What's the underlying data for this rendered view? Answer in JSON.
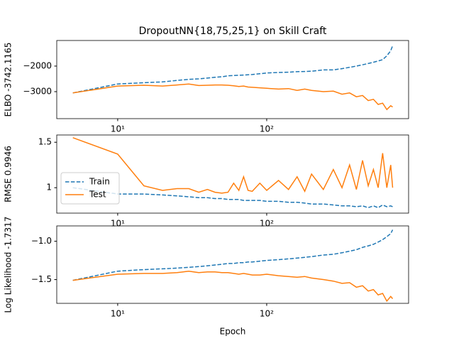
{
  "chart_data": [
    {
      "type": "line",
      "title": "DropoutNN{18,75,25,1} on Skill Craft",
      "ylabel": "ELBO -3742.1165",
      "xscale": "log",
      "xlim": [
        3.9,
        896
      ],
      "xticks": [
        {
          "value": 10,
          "label": "10¹"
        },
        {
          "value": 100,
          "label": "10²"
        }
      ],
      "ylim": [
        -4056,
        -1000
      ],
      "yticks": [
        {
          "value": -3000,
          "label": "−3000"
        },
        {
          "value": -2000,
          "label": "−2000"
        }
      ],
      "x": [
        5,
        10,
        15,
        20,
        25,
        30,
        35,
        40,
        45,
        50,
        55,
        60,
        65,
        70,
        75,
        80,
        90,
        100,
        120,
        140,
        160,
        180,
        200,
        240,
        280,
        320,
        360,
        400,
        440,
        480,
        520,
        560,
        600,
        640,
        680,
        700
      ],
      "series": [
        {
          "name": "Train",
          "color": "#1f77b4",
          "linestyle": "dashed",
          "values": [
            -3050,
            -2700,
            -2650,
            -2620,
            -2560,
            -2520,
            -2500,
            -2470,
            -2440,
            -2420,
            -2380,
            -2370,
            -2360,
            -2350,
            -2340,
            -2330,
            -2300,
            -2270,
            -2250,
            -2240,
            -2220,
            -2210,
            -2200,
            -2150,
            -2150,
            -2100,
            -2050,
            -2000,
            -1950,
            -1900,
            -1850,
            -1800,
            -1750,
            -1600,
            -1400,
            -1200
          ]
        },
        {
          "name": "Test",
          "color": "#ff7f0e",
          "linestyle": "solid",
          "values": [
            -3050,
            -2780,
            -2750,
            -2780,
            -2740,
            -2700,
            -2760,
            -2750,
            -2740,
            -2740,
            -2750,
            -2770,
            -2800,
            -2780,
            -2820,
            -2830,
            -2850,
            -2870,
            -2900,
            -2880,
            -2950,
            -2900,
            -2950,
            -3000,
            -2980,
            -3100,
            -3050,
            -3200,
            -3150,
            -3350,
            -3300,
            -3500,
            -3450,
            -3700,
            -3550,
            -3600
          ]
        }
      ]
    },
    {
      "type": "line",
      "ylabel": "RMSE 0.9946",
      "xscale": "log",
      "legend": "center left",
      "xlim": [
        3.9,
        896
      ],
      "xticks": [
        {
          "value": 10,
          "label": "10¹"
        },
        {
          "value": 100,
          "label": "10²"
        }
      ],
      "ylim": [
        0.72,
        1.58
      ],
      "yticks": [
        1.0,
        1.5
      ],
      "x": [
        5,
        10,
        15,
        20,
        25,
        30,
        35,
        40,
        45,
        50,
        55,
        60,
        65,
        70,
        75,
        80,
        90,
        100,
        120,
        140,
        160,
        180,
        200,
        240,
        280,
        320,
        360,
        400,
        440,
        480,
        520,
        560,
        600,
        640,
        680,
        700
      ],
      "series": [
        {
          "name": "Train",
          "color": "#1f77b4",
          "linestyle": "dashed",
          "values": [
            1.0,
            0.93,
            0.93,
            0.92,
            0.91,
            0.9,
            0.89,
            0.89,
            0.88,
            0.88,
            0.87,
            0.87,
            0.87,
            0.86,
            0.86,
            0.86,
            0.86,
            0.85,
            0.85,
            0.84,
            0.84,
            0.83,
            0.82,
            0.82,
            0.81,
            0.8,
            0.8,
            0.79,
            0.8,
            0.78,
            0.8,
            0.78,
            0.81,
            0.79,
            0.8,
            0.79
          ]
        },
        {
          "name": "Test",
          "color": "#ff7f0e",
          "linestyle": "solid",
          "values": [
            1.55,
            1.37,
            1.02,
            0.97,
            0.99,
            0.99,
            0.95,
            0.98,
            0.95,
            0.94,
            0.95,
            1.05,
            0.97,
            1.12,
            0.97,
            0.96,
            1.05,
            0.97,
            1.08,
            0.98,
            1.12,
            0.96,
            1.15,
            0.98,
            1.2,
            1.0,
            1.25,
            0.98,
            1.3,
            1.02,
            1.2,
            1.0,
            1.38,
            1.0,
            1.25,
            1.0
          ]
        }
      ]
    },
    {
      "type": "line",
      "ylabel": "Log Likelihood -1.7317",
      "xlabel": "Epoch",
      "xscale": "log",
      "xlim": [
        3.9,
        896
      ],
      "xticks": [
        {
          "value": 10,
          "label": "10¹"
        },
        {
          "value": 100,
          "label": "10²"
        }
      ],
      "ylim": [
        -1.81,
        -0.8
      ],
      "yticks": [
        {
          "value": -1.5,
          "label": "−1.5"
        },
        {
          "value": -1.0,
          "label": "−1.0"
        }
      ],
      "x": [
        5,
        10,
        15,
        20,
        25,
        30,
        35,
        40,
        45,
        50,
        55,
        60,
        65,
        70,
        75,
        80,
        90,
        100,
        120,
        140,
        160,
        180,
        200,
        240,
        280,
        320,
        360,
        400,
        440,
        480,
        520,
        560,
        600,
        640,
        680,
        700
      ],
      "series": [
        {
          "name": "Train",
          "color": "#1f77b4",
          "linestyle": "dashed",
          "values": [
            -1.51,
            -1.39,
            -1.37,
            -1.36,
            -1.35,
            -1.34,
            -1.33,
            -1.32,
            -1.31,
            -1.3,
            -1.29,
            -1.29,
            -1.28,
            -1.28,
            -1.27,
            -1.27,
            -1.26,
            -1.25,
            -1.24,
            -1.23,
            -1.22,
            -1.21,
            -1.2,
            -1.18,
            -1.17,
            -1.15,
            -1.13,
            -1.11,
            -1.08,
            -1.06,
            -1.04,
            -1.01,
            -0.98,
            -0.94,
            -0.9,
            -0.85
          ]
        },
        {
          "name": "Test",
          "color": "#ff7f0e",
          "linestyle": "solid",
          "values": [
            -1.51,
            -1.43,
            -1.42,
            -1.42,
            -1.41,
            -1.39,
            -1.41,
            -1.4,
            -1.4,
            -1.41,
            -1.41,
            -1.42,
            -1.43,
            -1.42,
            -1.43,
            -1.44,
            -1.44,
            -1.43,
            -1.45,
            -1.46,
            -1.47,
            -1.46,
            -1.48,
            -1.5,
            -1.52,
            -1.55,
            -1.54,
            -1.6,
            -1.58,
            -1.65,
            -1.63,
            -1.7,
            -1.68,
            -1.78,
            -1.72,
            -1.75
          ]
        }
      ]
    }
  ]
}
